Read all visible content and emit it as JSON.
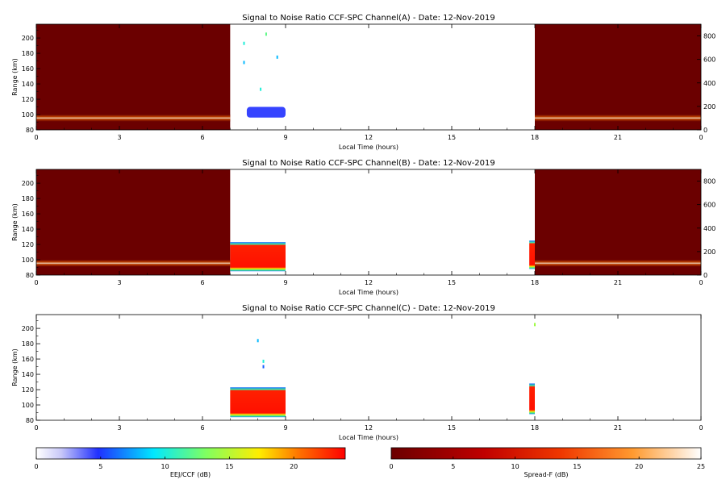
{
  "chart_data": [
    {
      "type": "heatmap",
      "title": "Signal to Noise Ratio CCF-SPC Channel(A) - Date: 12-Nov-2019",
      "xlabel": "Local Time (hours)",
      "ylabel": "Range (km)",
      "xlim": [
        0,
        24
      ],
      "ylim": [
        80,
        218
      ],
      "x_ticks": [
        "0",
        "3",
        "6",
        "9",
        "12",
        "15",
        "18",
        "21",
        "0"
      ],
      "y_ticks": [
        "80",
        "100",
        "120",
        "140",
        "160",
        "180",
        "200"
      ],
      "y2lim": [
        0,
        900
      ],
      "y2_ticks": [
        "0",
        "200",
        "400",
        "600",
        "800"
      ],
      "spread_f_blocks": [
        {
          "x0": 0,
          "x1": 7.0,
          "layer_range_km": [
            91,
            100
          ],
          "peak_snr_db": 25
        },
        {
          "x0": 18.0,
          "x1": 24,
          "layer_range_km": [
            91,
            100
          ],
          "peak_snr_db": 25
        }
      ],
      "eej_blocks": [
        {
          "x0": 7.6,
          "x1": 9.0,
          "y0": 96,
          "y1": 110,
          "snr_db": 5
        }
      ],
      "eej_scatter": [
        {
          "x": 7.5,
          "y": 193,
          "snr_db": 10
        },
        {
          "x": 7.5,
          "y": 168,
          "snr_db": 8
        },
        {
          "x": 8.3,
          "y": 205,
          "snr_db": 12
        },
        {
          "x": 8.7,
          "y": 175,
          "snr_db": 8
        },
        {
          "x": 8.1,
          "y": 133,
          "snr_db": 10
        }
      ]
    },
    {
      "type": "heatmap",
      "title": "Signal to Noise Ratio CCF-SPC Channel(B) - Date: 12-Nov-2019",
      "xlabel": "Local Time (hours)",
      "ylabel": "Range (km)",
      "xlim": [
        0,
        24
      ],
      "ylim": [
        80,
        218
      ],
      "x_ticks": [
        "0",
        "3",
        "6",
        "9",
        "12",
        "15",
        "18",
        "21",
        "0"
      ],
      "y_ticks": [
        "80",
        "100",
        "120",
        "140",
        "160",
        "180",
        "200"
      ],
      "y2lim": [
        0,
        900
      ],
      "y2_ticks": [
        "0",
        "200",
        "400",
        "600",
        "800"
      ],
      "spread_f_blocks": [
        {
          "x0": 0,
          "x1": 7.0,
          "layer_range_km": [
            91,
            100
          ],
          "peak_snr_db": 25
        },
        {
          "x0": 18.0,
          "x1": 24,
          "layer_range_km": [
            91,
            100
          ],
          "peak_snr_db": 25
        }
      ],
      "eej_blocks": [
        {
          "x0": 7.0,
          "x1": 9.0,
          "y0": 85,
          "y1": 123,
          "snr_db": 22
        },
        {
          "x0": 17.8,
          "x1": 18.0,
          "y0": 88,
          "y1": 125,
          "snr_db": 22
        }
      ],
      "eej_scatter": []
    },
    {
      "type": "heatmap",
      "title": "Signal to Noise Ratio CCF-SPC Channel(C) - Date: 12-Nov-2019",
      "xlabel": "Local Time (hours)",
      "ylabel": "Range (km)",
      "xlim": [
        0,
        24
      ],
      "ylim": [
        80,
        218
      ],
      "x_ticks": [
        "0",
        "3",
        "6",
        "9",
        "12",
        "15",
        "18",
        "21",
        "0"
      ],
      "y_ticks": [
        "80",
        "100",
        "120",
        "140",
        "160",
        "180",
        "200"
      ],
      "y2lim": null,
      "y2_ticks": [],
      "spread_f_blocks": [],
      "eej_blocks": [
        {
          "x0": 7.0,
          "x1": 9.0,
          "y0": 84,
          "y1": 123,
          "snr_db": 22
        },
        {
          "x0": 17.8,
          "x1": 18.0,
          "y0": 88,
          "y1": 128,
          "snr_db": 22
        }
      ],
      "eej_scatter": [
        {
          "x": 8.0,
          "y": 184,
          "snr_db": 8
        },
        {
          "x": 8.2,
          "y": 150,
          "snr_db": 6
        },
        {
          "x": 8.2,
          "y": 157,
          "snr_db": 10
        },
        {
          "x": 18.0,
          "y": 205,
          "snr_db": 14
        }
      ]
    }
  ],
  "colorbars": [
    {
      "label": "EEJ/CCF (dB)",
      "colormap": "eej",
      "range": [
        0,
        24
      ],
      "ticks": [
        "0",
        "5",
        "10",
        "15",
        "20"
      ]
    },
    {
      "label": "Spread-F (dB)",
      "colormap": "spread-f",
      "range": [
        0,
        25
      ],
      "ticks": [
        "0",
        "5",
        "10",
        "15",
        "20",
        "25"
      ]
    }
  ]
}
